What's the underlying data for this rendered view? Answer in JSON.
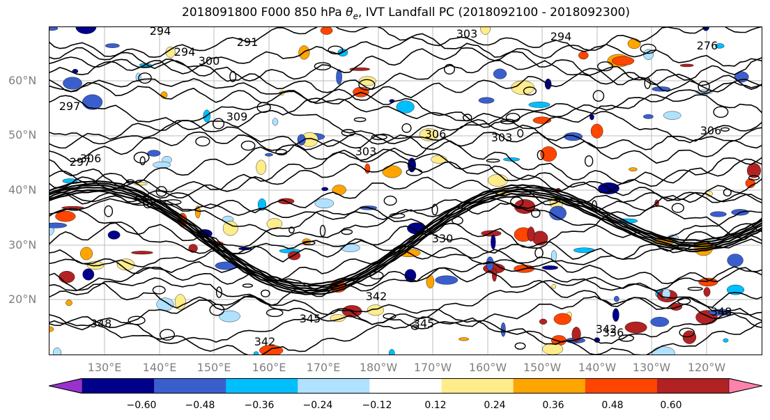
{
  "title": {
    "prefix": "2018091800 F000 850 hPa ",
    "theta": "θ",
    "theta_sub": "e",
    "suffix": ", IVT Landfall PC (2018092100 - 2018092300)"
  },
  "lat_labels": [
    "60°N",
    "50°N",
    "40°N",
    "30°N",
    "20°N"
  ],
  "lon_labels": [
    "130°E",
    "140°E",
    "150°E",
    "160°E",
    "170°E",
    "180°W",
    "170°W",
    "160°W",
    "150°W",
    "140°W",
    "130°W",
    "120°W"
  ],
  "contour_labels": [
    "294",
    "294",
    "291",
    "303",
    "300",
    "294",
    "276",
    "297",
    "309",
    "306",
    "306",
    "303",
    "303",
    "297",
    "306",
    "330",
    "342",
    "348",
    "342",
    "345",
    "342",
    "348",
    "345",
    "336"
  ],
  "colorbar": {
    "colors": [
      "#9932cc",
      "#00008b",
      "#3a5fcd",
      "#00bfff",
      "#b0e2ff",
      "#ffffff",
      "#ffec8b",
      "#ffa500",
      "#ff4500",
      "#b22222",
      "#ff82ab"
    ],
    "ticks": [
      "−0.60",
      "−0.48",
      "−0.36",
      "−0.24",
      "−0.12",
      "0.12",
      "0.24",
      "0.36",
      "0.48",
      "0.60"
    ]
  }
}
